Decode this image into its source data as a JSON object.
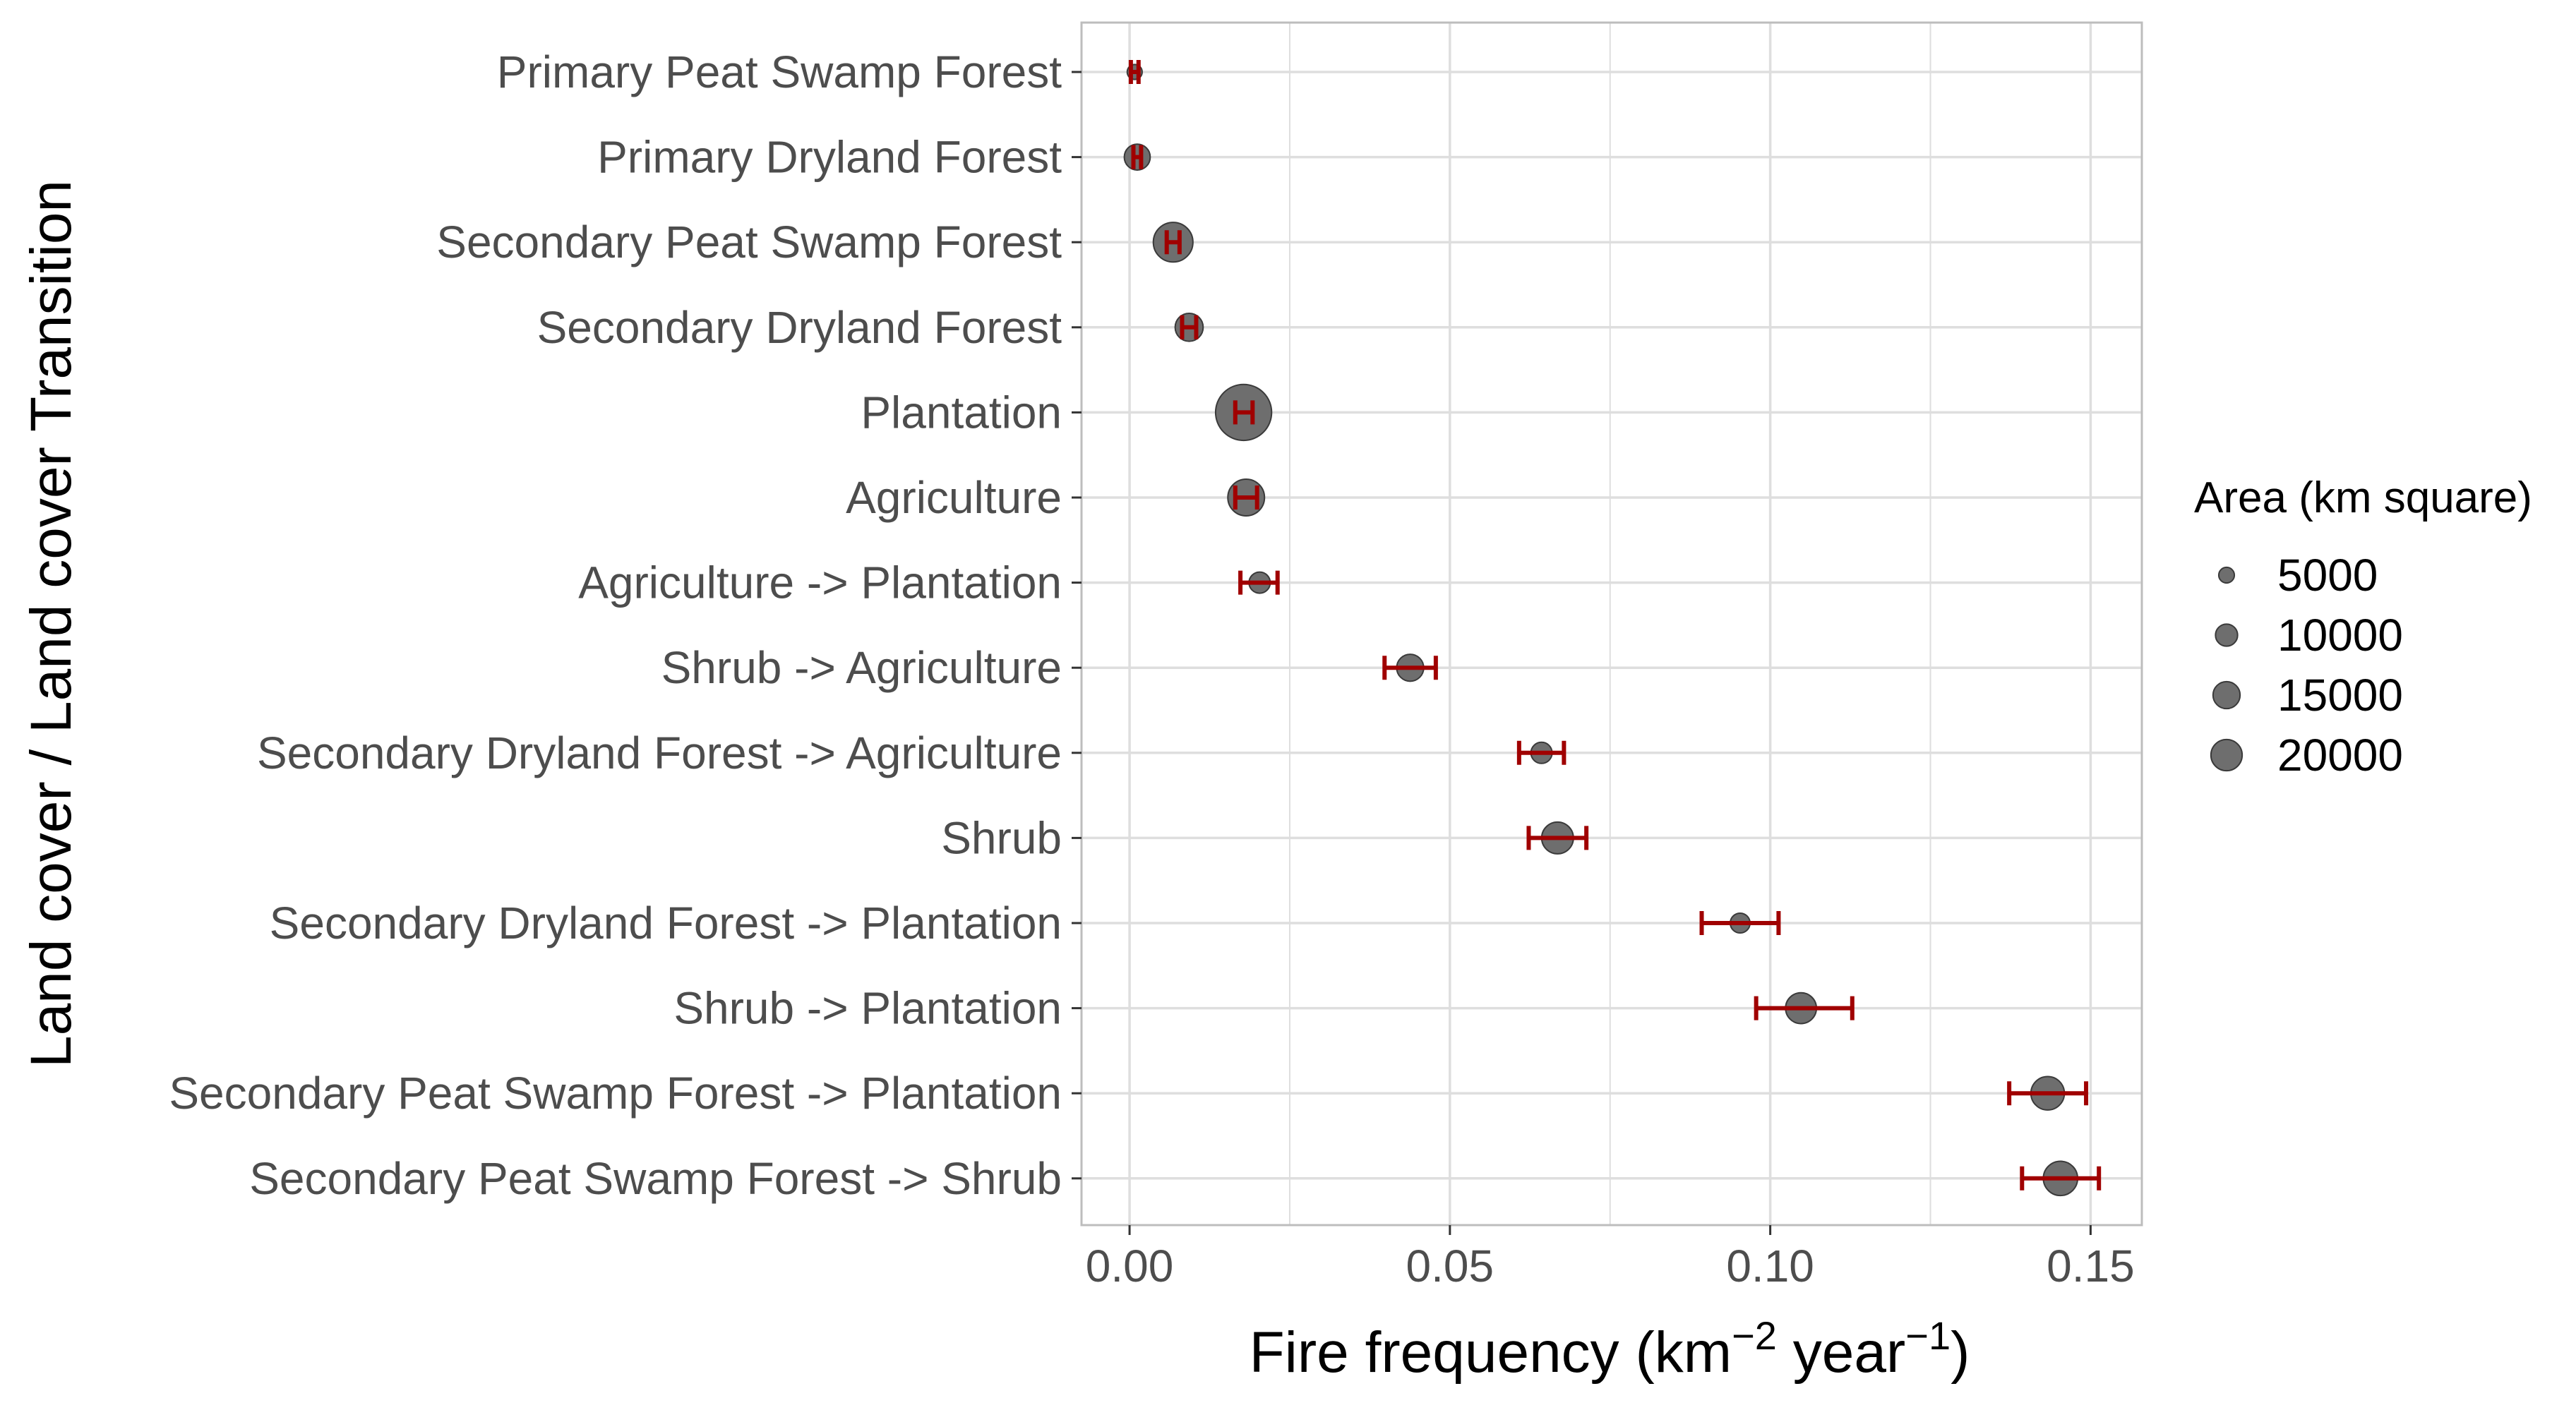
{
  "chart_data": {
    "type": "scatter",
    "orientation": "horizontal",
    "xlabel": "Fire frequency (km",
    "xlabel_sup1": "−2",
    "xlabel_mid": " year",
    "xlabel_sup2": "−1",
    "xlabel_end": ")",
    "ylabel": "Land cover / Land cover Transition",
    "xlim": [
      -0.0075,
      0.158
    ],
    "xticks": [
      0.0,
      0.05,
      0.1,
      0.15
    ],
    "xtick_labels": [
      "0.00",
      "0.05",
      "0.10",
      "0.15"
    ],
    "grid": true,
    "categories": [
      "Primary Peat Swamp Forest",
      "Primary Dryland Forest",
      "Secondary Peat Swamp Forest",
      "Secondary Dryland Forest",
      "Plantation",
      "Agriculture",
      "Agriculture -> Plantation",
      "Shrub -> Agriculture",
      "Secondary Dryland Forest -> Agriculture",
      "Shrub",
      "Secondary Dryland Forest -> Plantation",
      "Shrub -> Plantation",
      "Secondary Peat Swamp Forest -> Plantation",
      "Secondary Peat Swamp Forest -> Shrub"
    ],
    "points": [
      {
        "x": 0.0008,
        "lo": 0.0002,
        "hi": 0.0014,
        "area": 2000
      },
      {
        "x": 0.0012,
        "lo": 0.0006,
        "hi": 0.0018,
        "area": 6000
      },
      {
        "x": 0.0068,
        "lo": 0.0058,
        "hi": 0.0078,
        "area": 14000
      },
      {
        "x": 0.0093,
        "lo": 0.0082,
        "hi": 0.0104,
        "area": 7000
      },
      {
        "x": 0.0178,
        "lo": 0.0165,
        "hi": 0.0192,
        "area": 28000
      },
      {
        "x": 0.0182,
        "lo": 0.0165,
        "hi": 0.0199,
        "area": 12000
      },
      {
        "x": 0.0203,
        "lo": 0.0173,
        "hi": 0.0231,
        "area": 4000
      },
      {
        "x": 0.0438,
        "lo": 0.0398,
        "hi": 0.0478,
        "area": 6500
      },
      {
        "x": 0.0643,
        "lo": 0.0608,
        "hi": 0.0678,
        "area": 4000
      },
      {
        "x": 0.0668,
        "lo": 0.0623,
        "hi": 0.0713,
        "area": 9000
      },
      {
        "x": 0.0953,
        "lo": 0.0893,
        "hi": 0.1013,
        "area": 3500
      },
      {
        "x": 0.1048,
        "lo": 0.0978,
        "hi": 0.1128,
        "area": 8500
      },
      {
        "x": 0.1433,
        "lo": 0.1373,
        "hi": 0.1493,
        "area": 10000
      },
      {
        "x": 0.1453,
        "lo": 0.1393,
        "hi": 0.1513,
        "area": 10500
      }
    ],
    "legend": {
      "title": "Area (km square)",
      "position": "right",
      "entries": [
        {
          "label": "5000",
          "area": 5000
        },
        {
          "label": "10000",
          "area": 10000
        },
        {
          "label": "15000",
          "area": 15000
        },
        {
          "label": "20000",
          "area": 20000
        }
      ]
    },
    "colors": {
      "point_fill": "#6e6e6e",
      "point_stroke": "#3a3a3a",
      "errorbar": "#a00000",
      "grid": "#dedede",
      "panel_border": "#bdbdbd",
      "tick_text": "#4d4d4d",
      "title_text": "#000000"
    }
  }
}
